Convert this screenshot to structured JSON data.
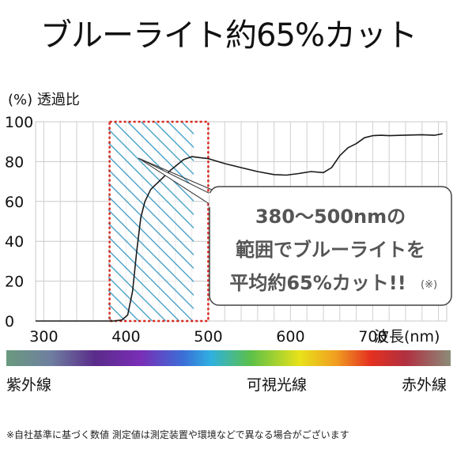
{
  "title": "ブルーライト約65%カット",
  "chart_data": {
    "type": "line",
    "y_unit_label": "(%) 透過比",
    "x_label": "波長(nm)",
    "xlim": [
      290,
      790
    ],
    "ylim": [
      0,
      100
    ],
    "y_ticks": [
      0,
      20,
      40,
      60,
      80,
      100
    ],
    "x_ticks": [
      300,
      400,
      500,
      600,
      700
    ],
    "grid": true,
    "highlight_range": [
      380,
      500
    ],
    "series": [
      {
        "color": "#1a1a1a",
        "points": [
          [
            290,
            0
          ],
          [
            385,
            0
          ],
          [
            395,
            0.5
          ],
          [
            402,
            3
          ],
          [
            408,
            15
          ],
          [
            413,
            35
          ],
          [
            418,
            52
          ],
          [
            423,
            60
          ],
          [
            430,
            66
          ],
          [
            440,
            70
          ],
          [
            455,
            76
          ],
          [
            470,
            81
          ],
          [
            480,
            82.5
          ],
          [
            490,
            82
          ],
          [
            500,
            81.5
          ],
          [
            520,
            79
          ],
          [
            540,
            77
          ],
          [
            560,
            75
          ],
          [
            580,
            73.5
          ],
          [
            595,
            73.2
          ],
          [
            610,
            74
          ],
          [
            625,
            75
          ],
          [
            640,
            74.5
          ],
          [
            650,
            77
          ],
          [
            660,
            83
          ],
          [
            670,
            87
          ],
          [
            680,
            89
          ],
          [
            690,
            92
          ],
          [
            700,
            93
          ],
          [
            710,
            93.2
          ],
          [
            720,
            93
          ],
          [
            740,
            93.3
          ],
          [
            760,
            93.5
          ],
          [
            775,
            93.2
          ],
          [
            785,
            94
          ]
        ]
      }
    ]
  },
  "callout": {
    "line1": "380～500nmの",
    "line2": "範囲でブルーライトを",
    "line3": "平均約65%カット!!",
    "note": "(※)"
  },
  "spectrum": {
    "left_label": "紫外線",
    "mid_label": "可視光線",
    "right_label": "赤外線"
  },
  "footnote": "※自社基準に基づく数値 測定値は測定装置や環境などで異なる場合がございます"
}
